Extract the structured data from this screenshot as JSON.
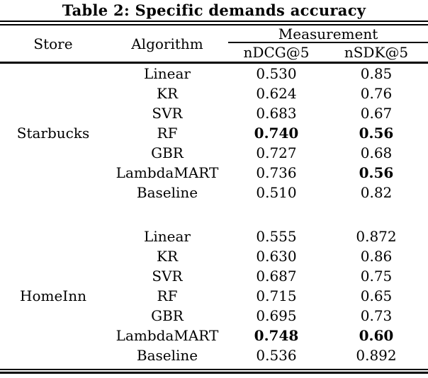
{
  "title": "Table 2: Specific demands accuracy",
  "header": {
    "store": "Store",
    "algorithm": "Algorithm",
    "measurement": "Measurement",
    "ndcg": "nDCG@5",
    "nsdk": "nSDK@5"
  },
  "sections": [
    {
      "store": "Starbucks",
      "rows": [
        {
          "algorithm": "Linear",
          "ndcg": "0.530",
          "nsdk": "0.85",
          "bold": []
        },
        {
          "algorithm": "KR",
          "ndcg": "0.624",
          "nsdk": "0.76",
          "bold": []
        },
        {
          "algorithm": "SVR",
          "ndcg": "0.683",
          "nsdk": "0.67",
          "bold": []
        },
        {
          "algorithm": "RF",
          "ndcg": "0.740",
          "nsdk": "0.56",
          "bold": [
            "ndcg",
            "nsdk"
          ]
        },
        {
          "algorithm": "GBR",
          "ndcg": "0.727",
          "nsdk": "0.68",
          "bold": []
        },
        {
          "algorithm": "LambdaMART",
          "ndcg": "0.736",
          "nsdk": "0.56",
          "bold": [
            "nsdk"
          ]
        },
        {
          "algorithm": "Baseline",
          "ndcg": "0.510",
          "nsdk": "0.82",
          "bold": []
        }
      ]
    },
    {
      "store": "HomeInn",
      "rows": [
        {
          "algorithm": "Linear",
          "ndcg": "0.555",
          "nsdk": "0.872",
          "bold": []
        },
        {
          "algorithm": "KR",
          "ndcg": "0.630",
          "nsdk": "0.86",
          "bold": []
        },
        {
          "algorithm": "SVR",
          "ndcg": "0.687",
          "nsdk": "0.75",
          "bold": []
        },
        {
          "algorithm": "RF",
          "ndcg": "0.715",
          "nsdk": "0.65",
          "bold": []
        },
        {
          "algorithm": "GBR",
          "ndcg": "0.695",
          "nsdk": "0.73",
          "bold": []
        },
        {
          "algorithm": "LambdaMART",
          "ndcg": "0.748",
          "nsdk": "0.60",
          "bold": [
            "ndcg",
            "nsdk"
          ]
        },
        {
          "algorithm": "Baseline",
          "ndcg": "0.536",
          "nsdk": "0.892",
          "bold": []
        }
      ]
    }
  ]
}
